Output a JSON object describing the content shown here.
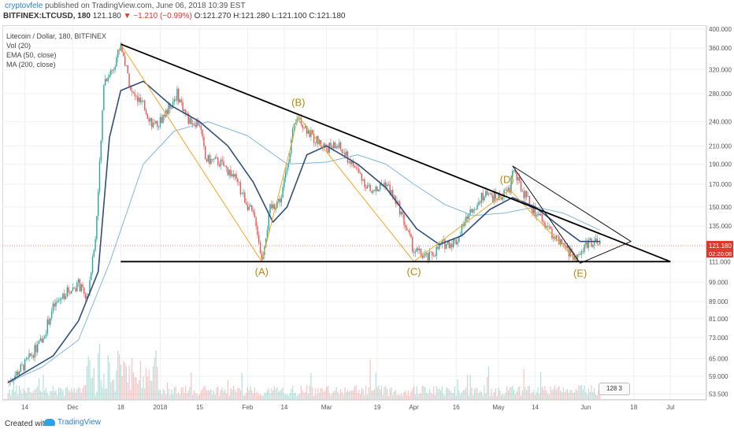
{
  "header": {
    "author": "cryptovfele",
    "published": "published on TradingView.com, June 06, 2018 10:39 EST",
    "symbol": "BITFINEX:LTCUSD, 180",
    "last": "121.180",
    "change": "▼ −1.210 (−0.99%)",
    "ohlc": "O:121.270 H:121.280 L:121.100 C:121.180"
  },
  "legend": {
    "title": "Litecoin / Dollar, 180, BITFINEX",
    "vol": "Vol (20)",
    "ema": "EMA (50, close)",
    "ma": "MA (200, close)"
  },
  "footer": {
    "created": "Created with",
    "brand": "TradingView"
  },
  "flags": "128 3",
  "colors": {
    "up": "#26a69a",
    "down": "#ef5350",
    "ema": "#2f4e7a",
    "ma": "#7fb7d8",
    "wave": "#f5a623",
    "pattern_label": "#b8860b",
    "last_price": "#e0362c"
  },
  "chart_data": {
    "type": "candlestick",
    "title": "Litecoin / Dollar, 180, BITFINEX",
    "y_scale": "log",
    "ylim": [
      52,
      405
    ],
    "y_ticks": [
      400,
      360,
      320,
      280,
      240,
      210,
      190,
      170,
      150,
      135,
      121.18,
      111,
      99,
      89,
      81,
      73,
      65,
      59,
      53.5
    ],
    "y_tick_labels": [
      "400.000",
      "360.000",
      "320.000",
      "280.000",
      "240.000",
      "210.000",
      "190.000",
      "170.000",
      "150.000",
      "135.000",
      "121.180",
      "111.000",
      "99.000",
      "89.000",
      "81.000",
      "73.000",
      "65.000",
      "59.000",
      "53.500"
    ],
    "x_ticks": [
      {
        "date": "2017-11-14",
        "label": "14"
      },
      {
        "date": "2017-12-01",
        "label": "Dec"
      },
      {
        "date": "2017-12-18",
        "label": "18"
      },
      {
        "date": "2018-01-01",
        "label": "2018"
      },
      {
        "date": "2018-01-15",
        "label": "15"
      },
      {
        "date": "2018-02-01",
        "label": "Feb"
      },
      {
        "date": "2018-02-14",
        "label": "14"
      },
      {
        "date": "2018-03-01",
        "label": "Mar"
      },
      {
        "date": "2018-03-19",
        "label": "19"
      },
      {
        "date": "2018-04-01",
        "label": "Apr"
      },
      {
        "date": "2018-04-16",
        "label": "16"
      },
      {
        "date": "2018-05-01",
        "label": "May"
      },
      {
        "date": "2018-05-14",
        "label": "14"
      },
      {
        "date": "2018-06-01",
        "label": "Jun"
      },
      {
        "date": "2018-06-18",
        "label": "18"
      },
      {
        "date": "2018-07-01",
        "label": "Jul"
      }
    ],
    "price_path": [
      [
        "2017-11-08",
        57
      ],
      [
        "2017-11-14",
        63
      ],
      [
        "2017-11-20",
        72
      ],
      [
        "2017-11-24",
        86
      ],
      [
        "2017-11-28",
        93
      ],
      [
        "2017-12-03",
        98
      ],
      [
        "2017-12-06",
        90
      ],
      [
        "2017-12-09",
        125
      ],
      [
        "2017-12-11",
        215
      ],
      [
        "2017-12-12",
        300
      ],
      [
        "2017-12-15",
        320
      ],
      [
        "2017-12-18",
        368
      ],
      [
        "2017-12-22",
        280
      ],
      [
        "2017-12-26",
        262
      ],
      [
        "2017-12-30",
        232
      ],
      [
        "2018-01-03",
        252
      ],
      [
        "2018-01-07",
        280
      ],
      [
        "2018-01-11",
        242
      ],
      [
        "2018-01-15",
        238
      ],
      [
        "2018-01-17",
        195
      ],
      [
        "2018-01-22",
        192
      ],
      [
        "2018-01-27",
        178
      ],
      [
        "2018-02-01",
        152
      ],
      [
        "2018-02-04",
        138
      ],
      [
        "2018-02-06",
        112
      ],
      [
        "2018-02-09",
        148
      ],
      [
        "2018-02-13",
        158
      ],
      [
        "2018-02-17",
        225
      ],
      [
        "2018-02-19",
        247
      ],
      [
        "2018-02-24",
        220
      ],
      [
        "2018-03-01",
        208
      ],
      [
        "2018-03-05",
        210
      ],
      [
        "2018-03-12",
        183
      ],
      [
        "2018-03-17",
        162
      ],
      [
        "2018-03-22",
        172
      ],
      [
        "2018-03-27",
        148
      ],
      [
        "2018-04-01",
        118
      ],
      [
        "2018-04-06",
        113
      ],
      [
        "2018-04-11",
        122
      ],
      [
        "2018-04-16",
        124
      ],
      [
        "2018-04-20",
        142
      ],
      [
        "2018-04-25",
        160
      ],
      [
        "2018-05-01",
        158
      ],
      [
        "2018-05-05",
        165
      ],
      [
        "2018-05-06",
        186
      ],
      [
        "2018-05-08",
        172
      ],
      [
        "2018-05-13",
        148
      ],
      [
        "2018-05-18",
        135
      ],
      [
        "2018-05-23",
        122
      ],
      [
        "2018-05-29",
        113
      ],
      [
        "2018-06-02",
        125
      ],
      [
        "2018-06-06",
        121.18
      ]
    ],
    "ema50": [
      [
        "2017-11-08",
        57
      ],
      [
        "2017-11-24",
        66
      ],
      [
        "2017-12-03",
        80
      ],
      [
        "2017-12-10",
        105
      ],
      [
        "2017-12-14",
        220
      ],
      [
        "2017-12-18",
        285
      ],
      [
        "2017-12-26",
        300
      ],
      [
        "2018-01-05",
        262
      ],
      [
        "2018-01-15",
        240
      ],
      [
        "2018-01-25",
        210
      ],
      [
        "2018-02-03",
        172
      ],
      [
        "2018-02-10",
        138
      ],
      [
        "2018-02-15",
        150
      ],
      [
        "2018-02-22",
        200
      ],
      [
        "2018-03-01",
        210
      ],
      [
        "2018-03-12",
        190
      ],
      [
        "2018-03-22",
        167
      ],
      [
        "2018-04-02",
        133
      ],
      [
        "2018-04-10",
        122
      ],
      [
        "2018-04-18",
        128
      ],
      [
        "2018-04-28",
        148
      ],
      [
        "2018-05-06",
        158
      ],
      [
        "2018-05-14",
        150
      ],
      [
        "2018-05-22",
        136
      ],
      [
        "2018-05-30",
        124
      ],
      [
        "2018-06-06",
        124
      ]
    ],
    "ma200": [
      [
        "2017-11-08",
        57
      ],
      [
        "2017-11-20",
        62
      ],
      [
        "2017-12-03",
        72
      ],
      [
        "2017-12-14",
        110
      ],
      [
        "2017-12-26",
        190
      ],
      [
        "2018-01-06",
        228
      ],
      [
        "2018-01-18",
        240
      ],
      [
        "2018-02-01",
        222
      ],
      [
        "2018-02-15",
        190
      ],
      [
        "2018-03-01",
        192
      ],
      [
        "2018-03-12",
        200
      ],
      [
        "2018-03-22",
        190
      ],
      [
        "2018-04-01",
        170
      ],
      [
        "2018-04-12",
        152
      ],
      [
        "2018-04-22",
        143
      ],
      [
        "2018-05-03",
        145
      ],
      [
        "2018-05-14",
        150
      ],
      [
        "2018-05-24",
        145
      ],
      [
        "2018-06-06",
        132
      ]
    ],
    "annotations": {
      "resistance_line": [
        [
          "2017-12-18",
          368
        ],
        [
          "2018-07-01",
          111
        ]
      ],
      "support_line": [
        [
          "2017-12-18",
          111
        ],
        [
          "2018-07-01",
          111
        ]
      ],
      "wave_path": [
        [
          "2017-12-18",
          368
        ],
        [
          "2018-02-06",
          111
        ],
        [
          "2018-02-19",
          247
        ],
        [
          "2018-04-01",
          111
        ],
        [
          "2018-05-05",
          165
        ],
        [
          "2018-05-29",
          111
        ]
      ],
      "small_triangle": [
        [
          "2018-05-06",
          188
        ],
        [
          "2018-06-17",
          124
        ],
        [
          "2018-05-30",
          110
        ]
      ],
      "labels": [
        {
          "text": "(A)",
          "date": "2018-02-06",
          "value": 103
        },
        {
          "text": "(B)",
          "date": "2018-02-19",
          "value": 262
        },
        {
          "text": "(C)",
          "date": "2018-04-01",
          "value": 103
        },
        {
          "text": "(D)",
          "date": "2018-05-04",
          "value": 171
        },
        {
          "text": "(E)",
          "date": "2018-05-30",
          "value": 102
        }
      ]
    },
    "last_price": {
      "value": "121.180",
      "countdown": "02:20:08"
    },
    "volume_pane": {
      "series": "Vol (20)",
      "colors": "green/red bars by candle direction"
    }
  }
}
